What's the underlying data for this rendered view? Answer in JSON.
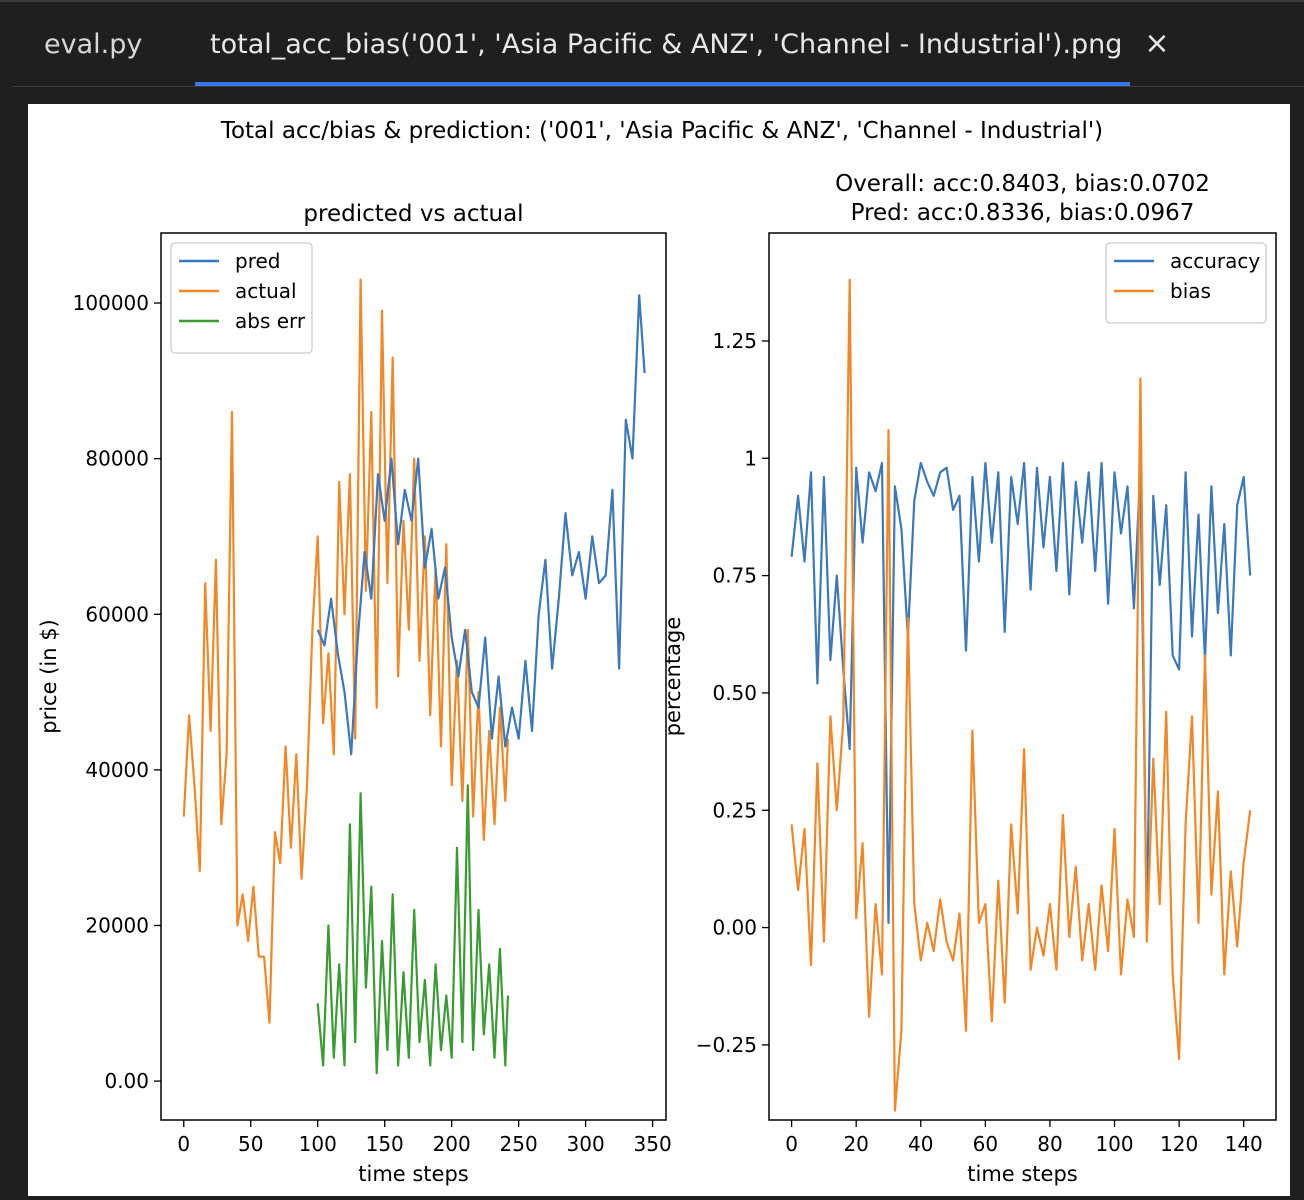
{
  "tabs": [
    {
      "label": "eval.py",
      "active": false
    },
    {
      "label": "total_acc_bias('001', 'Asia Pacific & ANZ', 'Channel - Industrial').png",
      "active": true
    }
  ],
  "close_icon": "close-icon",
  "colors": {
    "accent": "#3b78e7",
    "series_blue": "#3d78b8",
    "series_orange": "#f0882a",
    "series_green": "#3c9a35"
  },
  "figure": {
    "suptitle": "Total acc/bias & prediction: ('001', 'Asia Pacific & ANZ', 'Channel - Industrial')"
  },
  "chart_data": [
    {
      "type": "line",
      "title": "predicted vs actual",
      "xlabel": "time steps",
      "ylabel": "price (in $)",
      "xlim": [
        -17,
        360
      ],
      "ylim": [
        -5000,
        109000
      ],
      "xticks": [
        0,
        50,
        100,
        150,
        200,
        250,
        300,
        350
      ],
      "yticks": [
        0,
        20000,
        40000,
        60000,
        80000,
        100000
      ],
      "legend": "top-left",
      "series": [
        {
          "name": "actual",
          "x": [
            0,
            4,
            8,
            12,
            16,
            20,
            24,
            28,
            32,
            36,
            40,
            44,
            48,
            52,
            56,
            60,
            64,
            68,
            72,
            76,
            80,
            84,
            88,
            92,
            96,
            100,
            104,
            108,
            112,
            116,
            120,
            124,
            128,
            132,
            136,
            140,
            144,
            148,
            152,
            156,
            160,
            164,
            168,
            172,
            176,
            180,
            184,
            188,
            192,
            196,
            200,
            204,
            208,
            212,
            216,
            220,
            224,
            228,
            232,
            236,
            240,
            242
          ],
          "y": [
            34000,
            47000,
            38000,
            27000,
            64000,
            45000,
            67000,
            33000,
            42000,
            86000,
            20000,
            24000,
            18000,
            25000,
            16000,
            16000,
            7500,
            32000,
            28000,
            43000,
            30000,
            42000,
            26000,
            38000,
            58000,
            70000,
            46000,
            55000,
            42000,
            77000,
            60000,
            78000,
            44000,
            103000,
            63000,
            86000,
            48000,
            99000,
            64000,
            93000,
            52000,
            72000,
            58000,
            80000,
            54000,
            70000,
            47000,
            66000,
            43000,
            69000,
            38000,
            54000,
            36000,
            58000,
            34000,
            50000,
            31000,
            45000,
            33000,
            48000,
            36000,
            44000
          ]
        },
        {
          "name": "pred",
          "x": [
            100,
            105,
            110,
            115,
            120,
            125,
            130,
            135,
            140,
            145,
            150,
            155,
            160,
            165,
            170,
            175,
            180,
            185,
            190,
            195,
            200,
            205,
            210,
            215,
            220,
            225,
            230,
            235,
            240,
            245,
            250,
            255,
            260,
            265,
            270,
            275,
            280,
            285,
            290,
            295,
            300,
            305,
            310,
            315,
            320,
            325,
            330,
            335,
            340,
            344
          ],
          "y": [
            58000,
            56000,
            62000,
            55000,
            50000,
            42000,
            57000,
            68000,
            62000,
            78000,
            72000,
            80000,
            69000,
            76000,
            72000,
            80000,
            66000,
            71000,
            62000,
            66000,
            57000,
            52000,
            58000,
            50000,
            48000,
            57000,
            44000,
            52000,
            43000,
            48000,
            44000,
            54000,
            45000,
            60000,
            67000,
            53000,
            62000,
            73000,
            65000,
            68000,
            62000,
            70000,
            64000,
            65000,
            76000,
            53000,
            85000,
            80000,
            101000,
            91000
          ]
        },
        {
          "name": "abs err",
          "x": [
            100,
            104,
            108,
            112,
            116,
            120,
            124,
            128,
            132,
            136,
            140,
            144,
            148,
            152,
            156,
            160,
            164,
            168,
            172,
            176,
            180,
            184,
            188,
            192,
            196,
            200,
            204,
            208,
            212,
            216,
            220,
            224,
            228,
            232,
            236,
            240,
            242
          ],
          "y": [
            10000,
            2000,
            20000,
            3000,
            15000,
            2000,
            33000,
            5000,
            37000,
            12000,
            25000,
            1000,
            18000,
            4000,
            24000,
            2000,
            14000,
            3000,
            22000,
            5000,
            13000,
            2000,
            15000,
            4000,
            11000,
            3000,
            30000,
            5000,
            38000,
            4000,
            22000,
            6000,
            15000,
            3000,
            17000,
            2000,
            11000
          ]
        }
      ]
    },
    {
      "type": "line",
      "title": "Overall: acc:0.8403, bias:0.0702\nPred: acc:0.8336, bias:0.0967",
      "title_lines": [
        "Overall: acc:0.8403, bias:0.0702",
        "Pred: acc:0.8336, bias:0.0967"
      ],
      "xlabel": "time steps",
      "ylabel": "percentage",
      "xlim": [
        -7,
        150
      ],
      "ylim": [
        -0.41,
        1.48
      ],
      "xticks": [
        0,
        20,
        40,
        60,
        80,
        100,
        120,
        140
      ],
      "yticks": [
        -0.25,
        0.0,
        0.25,
        0.5,
        0.75,
        1.0,
        1.25
      ],
      "legend": "top-right",
      "series": [
        {
          "name": "accuracy",
          "x": [
            0,
            2,
            4,
            6,
            8,
            10,
            12,
            14,
            16,
            18,
            20,
            22,
            24,
            26,
            28,
            30,
            32,
            34,
            36,
            38,
            40,
            42,
            44,
            46,
            48,
            50,
            52,
            54,
            56,
            58,
            60,
            62,
            64,
            66,
            68,
            70,
            72,
            74,
            76,
            78,
            80,
            82,
            84,
            86,
            88,
            90,
            92,
            94,
            96,
            98,
            100,
            102,
            104,
            106,
            108,
            110,
            112,
            114,
            116,
            118,
            120,
            122,
            124,
            126,
            128,
            130,
            132,
            134,
            136,
            138,
            140,
            142
          ],
          "y": [
            0.79,
            0.92,
            0.78,
            0.97,
            0.52,
            0.96,
            0.57,
            0.75,
            0.55,
            0.38,
            0.98,
            0.82,
            0.97,
            0.93,
            0.99,
            0.01,
            0.94,
            0.85,
            0.62,
            0.91,
            0.99,
            0.95,
            0.92,
            0.97,
            0.98,
            0.89,
            0.92,
            0.59,
            0.96,
            0.78,
            0.99,
            0.82,
            0.97,
            0.63,
            0.96,
            0.86,
            0.99,
            0.72,
            0.98,
            0.81,
            0.96,
            0.76,
            0.99,
            0.71,
            0.95,
            0.82,
            0.97,
            0.76,
            0.99,
            0.69,
            0.97,
            0.84,
            0.94,
            0.68,
            0.98,
            0.0,
            0.92,
            0.73,
            0.9,
            0.58,
            0.55,
            0.97,
            0.62,
            0.88,
            0.57,
            0.94,
            0.67,
            0.86,
            0.58,
            0.9,
            0.96,
            0.75
          ]
        },
        {
          "name": "bias",
          "x": [
            0,
            2,
            4,
            6,
            8,
            10,
            12,
            14,
            16,
            18,
            20,
            22,
            24,
            26,
            28,
            30,
            32,
            34,
            36,
            38,
            40,
            42,
            44,
            46,
            48,
            50,
            52,
            54,
            56,
            58,
            60,
            62,
            64,
            66,
            68,
            70,
            72,
            74,
            76,
            78,
            80,
            82,
            84,
            86,
            88,
            90,
            92,
            94,
            96,
            98,
            100,
            102,
            104,
            106,
            108,
            110,
            112,
            114,
            116,
            118,
            120,
            122,
            124,
            126,
            128,
            130,
            132,
            134,
            136,
            138,
            140,
            142
          ],
          "y": [
            0.22,
            0.08,
            0.21,
            -0.08,
            0.35,
            -0.03,
            0.45,
            0.25,
            0.44,
            1.38,
            0.02,
            0.18,
            -0.19,
            0.05,
            -0.1,
            1.06,
            -0.39,
            -0.22,
            0.66,
            0.05,
            -0.07,
            0.01,
            -0.05,
            0.06,
            -0.03,
            -0.07,
            0.03,
            -0.22,
            0.42,
            0.01,
            0.05,
            -0.2,
            0.1,
            -0.16,
            0.22,
            0.03,
            0.38,
            -0.09,
            0.0,
            -0.06,
            0.05,
            -0.09,
            0.24,
            -0.02,
            0.13,
            -0.07,
            0.05,
            -0.09,
            0.09,
            -0.05,
            0.21,
            -0.1,
            0.06,
            -0.02,
            1.17,
            -0.03,
            0.36,
            0.05,
            0.46,
            -0.1,
            -0.28,
            0.22,
            0.45,
            0.01,
            0.58,
            0.07,
            0.29,
            -0.1,
            0.12,
            -0.04,
            0.14,
            0.25
          ]
        }
      ]
    }
  ]
}
